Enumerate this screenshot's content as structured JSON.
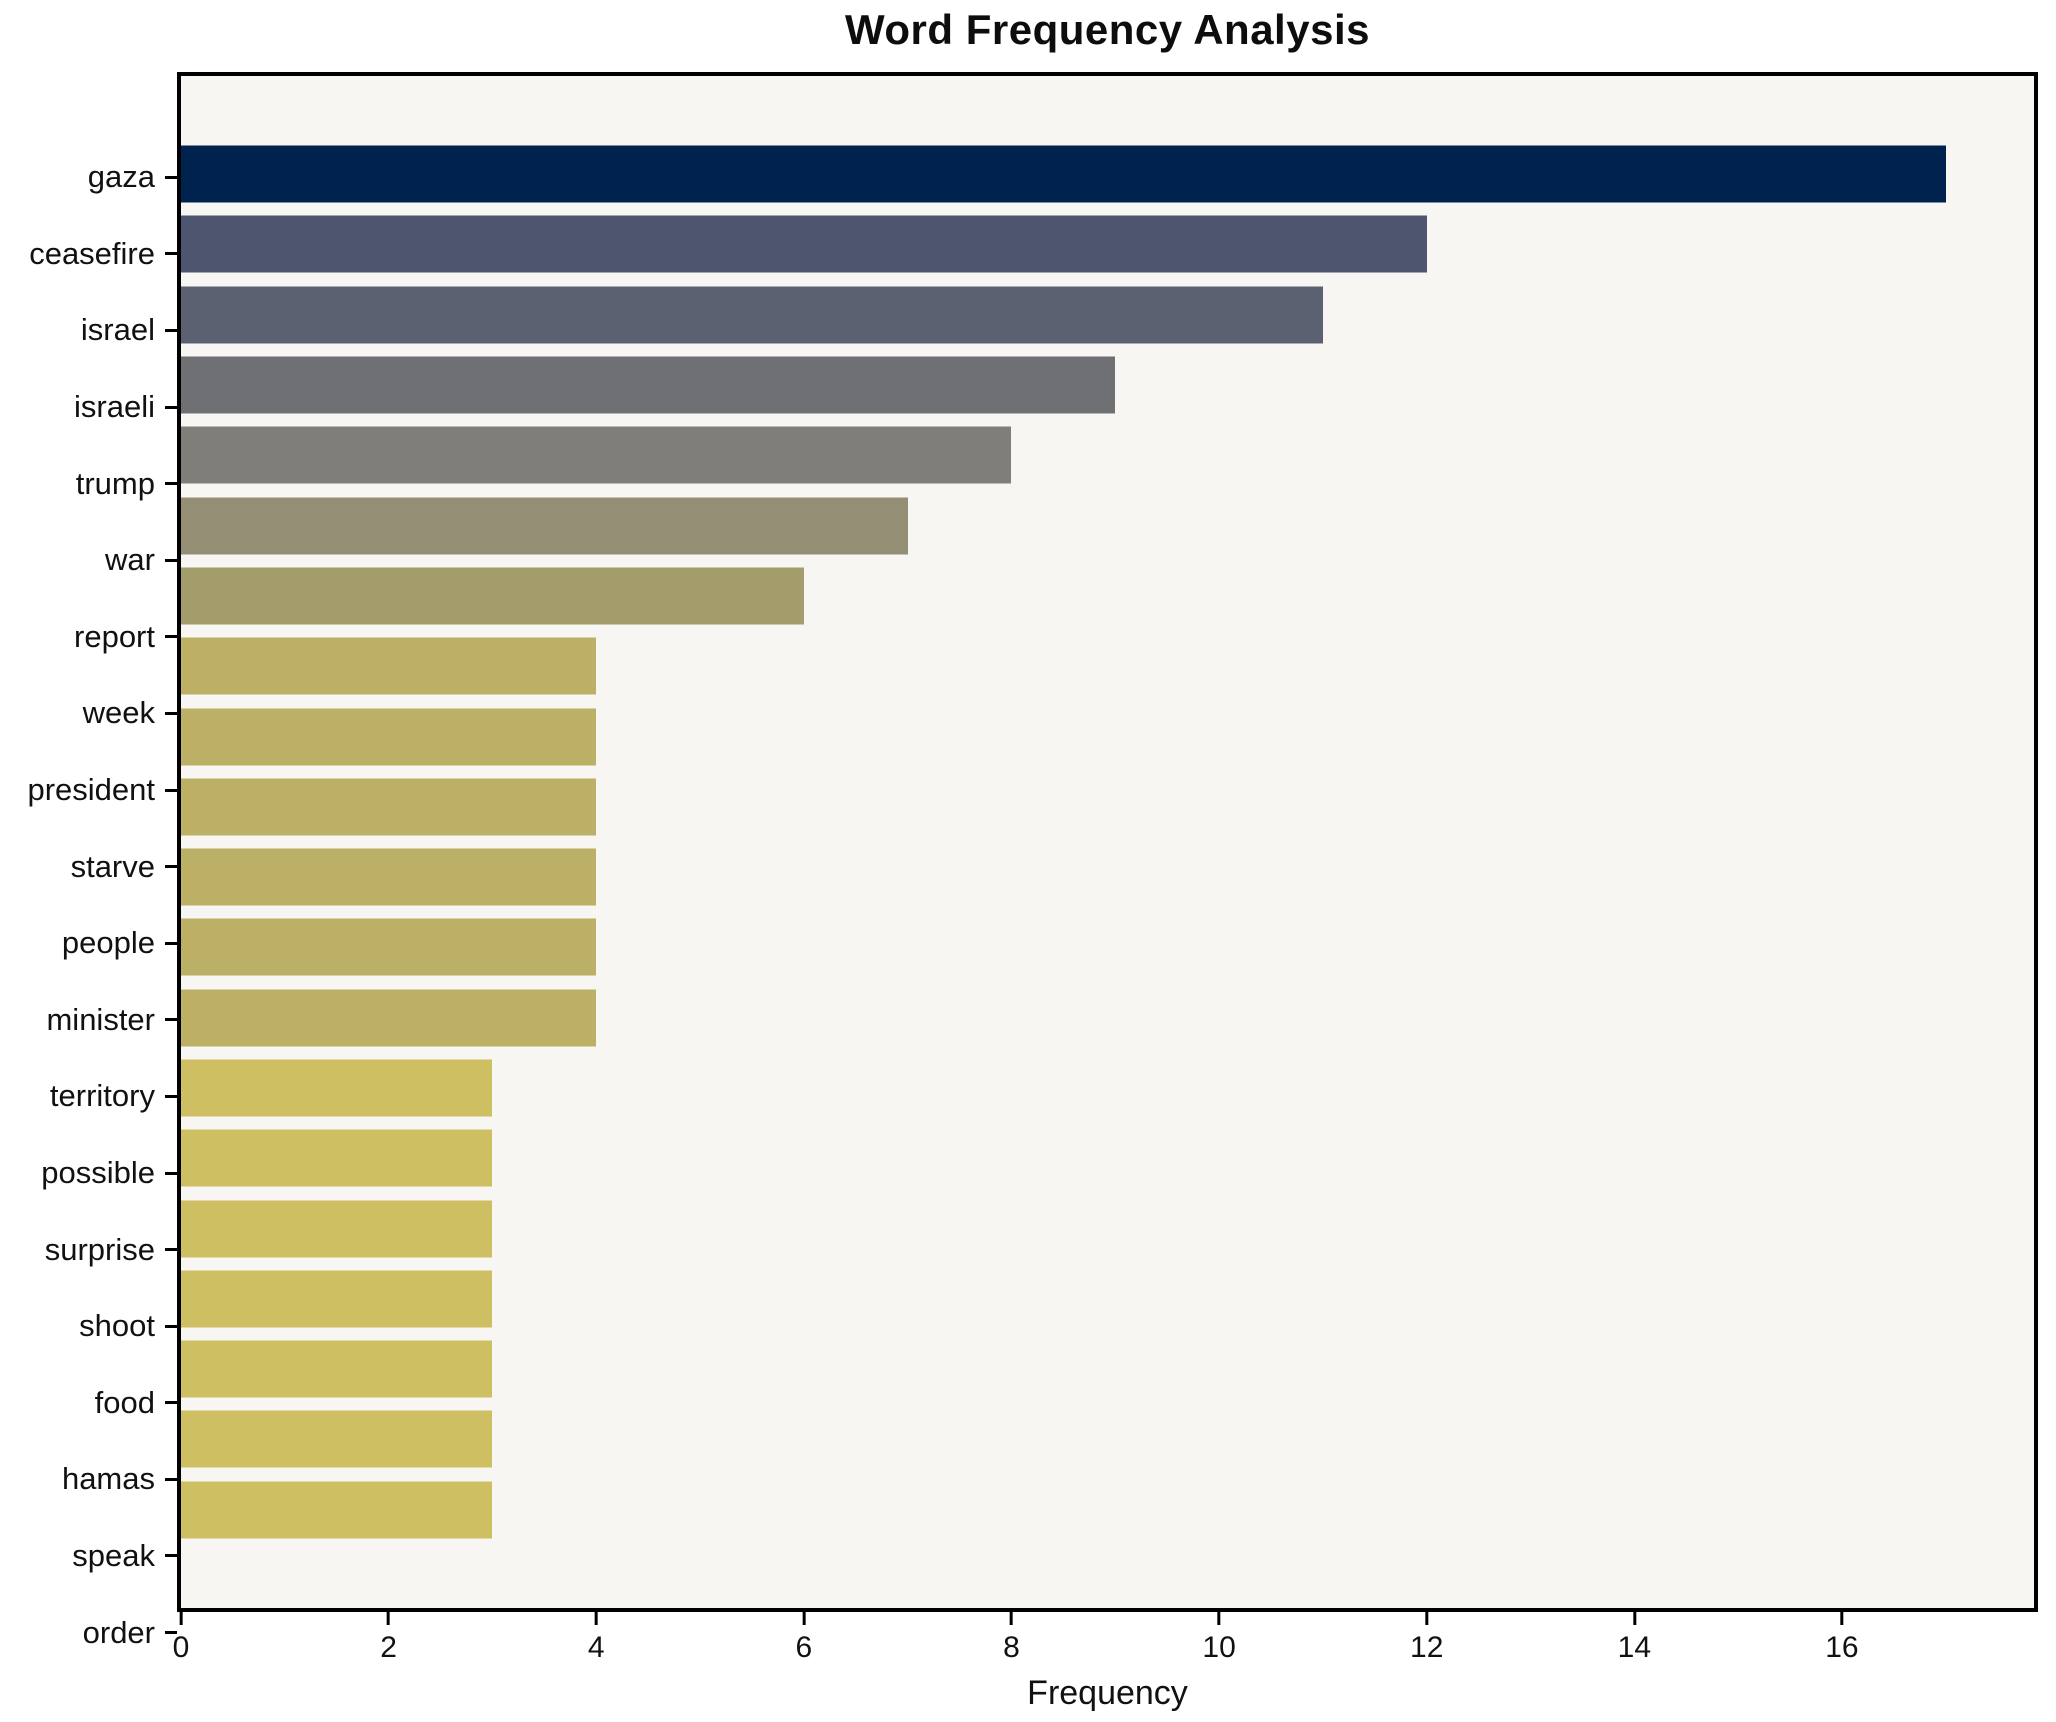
{
  "title": "Word Frequency Analysis",
  "chart_data": {
    "type": "bar",
    "orientation": "horizontal",
    "title": "Word Frequency Analysis",
    "xlabel": "Frequency",
    "ylabel": "",
    "categories": [
      "gaza",
      "ceasefire",
      "israel",
      "israeli",
      "trump",
      "war",
      "report",
      "week",
      "president",
      "starve",
      "people",
      "minister",
      "territory",
      "possible",
      "surprise",
      "shoot",
      "food",
      "hamas",
      "speak",
      "order"
    ],
    "values": [
      17,
      12,
      11,
      9,
      8,
      7,
      6,
      4,
      4,
      4,
      4,
      4,
      4,
      3,
      3,
      3,
      3,
      3,
      3,
      3
    ],
    "bar_colors": [
      "#00224e",
      "#4d566e",
      "#5b6170",
      "#6f7073",
      "#7f7e78",
      "#938e74",
      "#a39d6b",
      "#bbb066",
      "#bbb066",
      "#bbb066",
      "#bbb066",
      "#bbb066",
      "#bbb066",
      "#cdbf62",
      "#cdbf62",
      "#cdbf62",
      "#cdbf62",
      "#cdbf62",
      "#cdbf62",
      "#cdbf62"
    ],
    "xlim": [
      0,
      17.85
    ],
    "xticks": [
      0,
      2,
      4,
      6,
      8,
      10,
      12,
      14,
      16
    ],
    "grid": false,
    "legend": "none",
    "plot_background": "#f7f6f3",
    "figure_background": "#ffffff",
    "frame_color": "#000000"
  }
}
